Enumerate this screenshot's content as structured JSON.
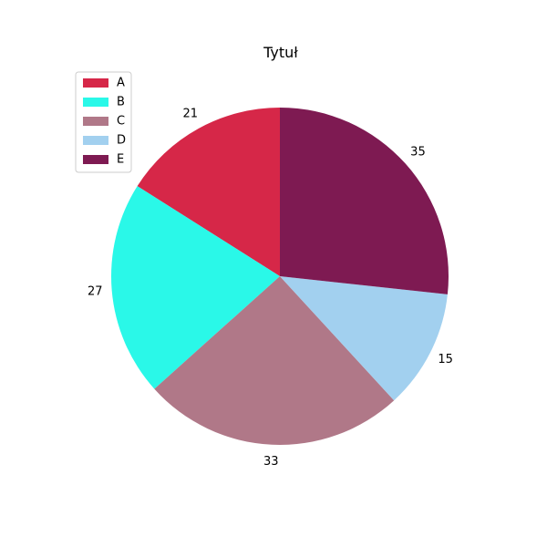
{
  "chart_data": {
    "type": "pie",
    "title": "Tytuł",
    "categories": [
      "A",
      "B",
      "C",
      "D",
      "E"
    ],
    "values": [
      21,
      27,
      33,
      15,
      35
    ],
    "colors": [
      "#d62748",
      "#2af8e8",
      "#b07888",
      "#a2d0ef",
      "#7e1a52"
    ],
    "start_angle_deg": 90,
    "direction": "counterclockwise",
    "legend": "top-left"
  }
}
